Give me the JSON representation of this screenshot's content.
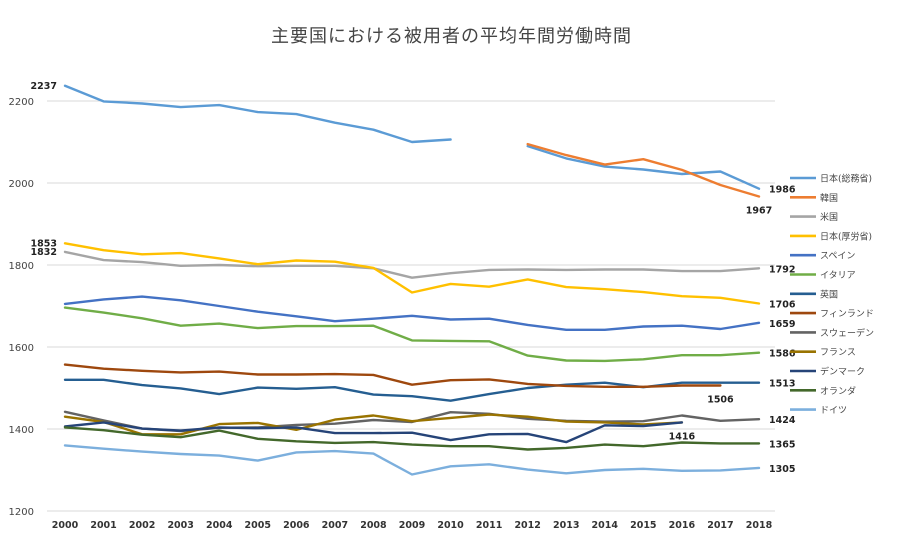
{
  "chart_data": {
    "type": "line",
    "title": "主要国における被用者の平均年間労働時間",
    "xlabel": "",
    "ylabel": "",
    "ylim": [
      1200,
      2300
    ],
    "yticks": [
      1200,
      1400,
      1600,
      1800,
      2000,
      2200
    ],
    "grid": true,
    "legend_position": "right",
    "x": [
      "2000",
      "2001",
      "2002",
      "2003",
      "2004",
      "2005",
      "2006",
      "2007",
      "2008",
      "2009",
      "2010",
      "2011",
      "2012",
      "2013",
      "2014",
      "2015",
      "2016",
      "2017",
      "2018"
    ],
    "series": [
      {
        "name": "日本(総務省)",
        "color": "#5b9bd5",
        "values": [
          2237,
          2199,
          2194,
          2185,
          2190,
          2173,
          2168,
          2147,
          2130,
          2100,
          2106,
          null,
          2090,
          2060,
          2040,
          2033,
          2022,
          2028,
          1986
        ]
      },
      {
        "name": "韓国",
        "color": "#ed7d31",
        "values": [
          null,
          null,
          null,
          null,
          null,
          null,
          null,
          null,
          null,
          null,
          null,
          null,
          2095,
          2068,
          2045,
          2058,
          2032,
          1995,
          1967
        ]
      },
      {
        "name": "米国",
        "color": "#a5a5a5",
        "values": [
          1832,
          1812,
          1807,
          1798,
          1800,
          1797,
          1798,
          1798,
          1792,
          1769,
          1780,
          1788,
          1789,
          1788,
          1789,
          1789,
          1785,
          1785,
          1792
        ]
      },
      {
        "name": "日本(厚労省)",
        "color": "#ffc000",
        "values": [
          1853,
          1836,
          1826,
          1829,
          1816,
          1802,
          1811,
          1808,
          1793,
          1733,
          1754,
          1747,
          1765,
          1746,
          1741,
          1734,
          1724,
          1720,
          1706
        ]
      },
      {
        "name": "スペイン",
        "color": "#4472c4",
        "values": [
          1705,
          1716,
          1723,
          1714,
          1700,
          1686,
          1675,
          1663,
          1669,
          1676,
          1667,
          1669,
          1654,
          1642,
          1642,
          1650,
          1652,
          1644,
          1659
        ]
      },
      {
        "name": "イタリア",
        "color": "#70ad47",
        "values": [
          1696,
          1684,
          1670,
          1652,
          1657,
          1646,
          1651,
          1651,
          1652,
          1616,
          1615,
          1614,
          1579,
          1567,
          1566,
          1570,
          1580,
          1580,
          1586
        ]
      },
      {
        "name": "英国",
        "color": "#255e91",
        "values": [
          1520,
          1520,
          1507,
          1499,
          1485,
          1501,
          1498,
          1502,
          1484,
          1480,
          1469,
          1485,
          1500,
          1508,
          1513,
          1502,
          1513,
          1513,
          1513
        ]
      },
      {
        "name": "フィンランド",
        "color": "#9e480e",
        "values": [
          1557,
          1547,
          1542,
          1538,
          1540,
          1533,
          1533,
          1534,
          1532,
          1508,
          1519,
          1521,
          1510,
          1505,
          1503,
          1503,
          1506,
          1506,
          null
        ]
      },
      {
        "name": "スウェーデン",
        "color": "#636363",
        "values": [
          1442,
          1421,
          1401,
          1395,
          1403,
          1404,
          1410,
          1413,
          1422,
          1417,
          1441,
          1437,
          1425,
          1420,
          1418,
          1419,
          1433,
          1420,
          1424
        ]
      },
      {
        "name": "フランス",
        "color": "#997300",
        "values": [
          1430,
          1417,
          1387,
          1387,
          1412,
          1415,
          1398,
          1423,
          1433,
          1419,
          1427,
          1435,
          1430,
          1418,
          1416,
          1411,
          1416,
          null,
          null
        ]
      },
      {
        "name": "デンマーク",
        "color": "#264478",
        "values": [
          1406,
          1416,
          1401,
          1396,
          1404,
          1402,
          1404,
          1390,
          1390,
          1391,
          1373,
          1387,
          1388,
          1368,
          1409,
          1407,
          1416,
          null,
          null
        ]
      },
      {
        "name": "オランダ",
        "color": "#43682b",
        "values": [
          1404,
          1397,
          1386,
          1380,
          1396,
          1376,
          1370,
          1366,
          1368,
          1362,
          1358,
          1358,
          1350,
          1354,
          1362,
          1358,
          1367,
          1365,
          1365
        ]
      },
      {
        "name": "ドイツ",
        "color": "#7cafdd",
        "values": [
          1360,
          1352,
          1345,
          1339,
          1335,
          1323,
          1343,
          1346,
          1340,
          1289,
          1309,
          1314,
          1301,
          1292,
          1300,
          1303,
          1298,
          1299,
          1305
        ]
      }
    ],
    "annotations": [
      {
        "text": "2237",
        "series": "日本(総務省)",
        "x": "2000",
        "side": "left"
      },
      {
        "text": "1853",
        "series": "日本(厚労省)",
        "x": "2000",
        "side": "left"
      },
      {
        "text": "1832",
        "series": "米国",
        "x": "2000",
        "side": "left"
      },
      {
        "text": "1986",
        "series": "日本(総務省)",
        "x": "2018",
        "side": "right"
      },
      {
        "text": "1967",
        "series": "韓国",
        "x": "2018",
        "side": "below"
      },
      {
        "text": "1792",
        "series": "米国",
        "x": "2018",
        "side": "right"
      },
      {
        "text": "1706",
        "series": "日本(厚労省)",
        "x": "2018",
        "side": "right"
      },
      {
        "text": "1659",
        "series": "スペイン",
        "x": "2018",
        "side": "right"
      },
      {
        "text": "1586",
        "series": "イタリア",
        "x": "2018",
        "side": "right"
      },
      {
        "text": "1513",
        "series": "英国",
        "x": "2018",
        "side": "right"
      },
      {
        "text": "1506",
        "series": "フィンランド",
        "x": "2017",
        "side": "below"
      },
      {
        "text": "1424",
        "series": "スウェーデン",
        "x": "2018",
        "side": "right"
      },
      {
        "text": "1416",
        "series": "デンマーク",
        "x": "2016",
        "side": "below"
      },
      {
        "text": "1365",
        "series": "オランダ",
        "x": "2018",
        "side": "right"
      },
      {
        "text": "1305",
        "series": "ドイツ",
        "x": "2018",
        "side": "right"
      }
    ]
  }
}
